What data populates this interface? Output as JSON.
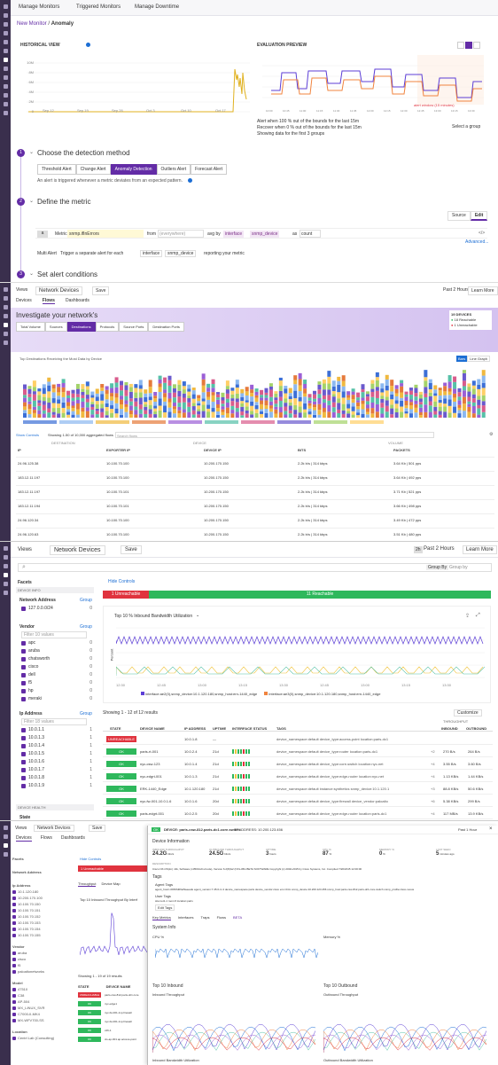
{
  "monitor": {
    "tabs": [
      "Manage Monitors",
      "Triggered Monitors",
      "Manage Downtime"
    ],
    "breadcrumb_root": "New Monitor",
    "breadcrumb_sep": "/",
    "breadcrumb_leaf": "Anomaly",
    "historical_view": "HISTORICAL VIEW",
    "evaluation_preview": "EVALUATION PREVIEW",
    "hist_y_ticks": [
      "10M",
      "8M",
      "6M",
      "4M",
      "2M",
      "0"
    ],
    "hist_x_ticks": [
      "Sep 12",
      "Sep 19",
      "Sep 26",
      "Oct 3",
      "Oct 10",
      "Oct 17"
    ],
    "eval_x_ticks": [
      "10:00",
      "10:45",
      "11:00",
      "11:15",
      "11:30",
      "11:45",
      "12:00",
      "12:15",
      "12:30",
      "12:45",
      "13:00",
      "13:15",
      "13:30"
    ],
    "eval_alert_window": "alert window (15 minutes)",
    "alert_line_1": "Alert when 100 % out of the bounds for the last 15m",
    "alert_line_2": "Recover when 0 % out of the bounds for the last 15m",
    "alert_line_3": "Showing data for the first 3 groups",
    "select_group": "Select a group",
    "step1_num": "1",
    "step1_title": "Choose the detection method",
    "methods": [
      "Threshold Alert",
      "Change Alert",
      "Anomaly Detection",
      "Outliers Alert",
      "Forecast Alert"
    ],
    "method_desc": "An alert is triggered whenever a metric deviates from an expected pattern.",
    "step2_num": "2",
    "step2_title": "Define the metric",
    "source_label": "Source",
    "edit_label": "Edit",
    "query_letter": "a",
    "metric_label": "Metric",
    "metric_value": "snmp.ifInErrors",
    "from_label": "from",
    "from_value": "(everywhere)",
    "avg_by": "avg by",
    "group_tags": [
      "interface",
      "snmp_device"
    ],
    "as_label": "as",
    "as_value": "count",
    "advanced": "Advanced...",
    "multi_alert": "Multi Alert",
    "trigger_text": "Trigger a separate alert for each",
    "trigger_tags": [
      "interface",
      "snmp_device"
    ],
    "reporting": "reporting your metric",
    "step3_num": "3",
    "step3_title": "Set alert conditions"
  },
  "flows": {
    "views": "Views",
    "title": "Network Devices",
    "save": "Save",
    "time": "Past 2 Hours",
    "learn_more": "Learn More",
    "tabs": [
      "Devices",
      "Flows",
      "Dashboards"
    ],
    "banner_title": "Investigate your network's",
    "subtabs": [
      "Total Volume",
      "Sources",
      "Destinations",
      "Protocols",
      "Source Ports",
      "Destination Ports"
    ],
    "legend_title": "19 DEVICES",
    "legend_ok": "18 Reachable",
    "legend_bad": "1 Unreachable",
    "chart_title": "Top Destinations Receiving the Most Data by Device",
    "bars_btn": "Bars",
    "line_btn": "Line Graph",
    "show_controls": "Show Controls",
    "showing": "Showing 1-50 of 10,000 aggregated flows",
    "search": "Search flows",
    "col_groups": [
      "DESTINATION",
      "DEVICE",
      "VOLUME"
    ],
    "cols": [
      "IP",
      "EXPORTER IP",
      "DEVICE IP",
      "BITS",
      "PACKETS"
    ],
    "rows": [
      [
        "24.96.125.38",
        "10.100.70.100",
        "10.200.170.150",
        "2.2k b/s | 314 kbps",
        "3.64 Kb | 501 pps"
      ],
      [
        "183.12.11.197",
        "10.100.70.100",
        "10.200.170.150",
        "2.2k b/s | 314 kbps",
        "3.64 Kb | 492 pps"
      ],
      [
        "183.12.11.197",
        "10.100.70.101",
        "10.200.170.150",
        "2.2k b/s | 314 kbps",
        "3.71 Kb | 521 pps"
      ],
      [
        "183.12.11.194",
        "10.100.70.101",
        "10.200.170.150",
        "2.2k b/s | 314 kbps",
        "3.66 Kb | 498 pps"
      ],
      [
        "24.96.120.34",
        "10.100.70.100",
        "10.200.170.150",
        "2.2k b/s | 314 kbps",
        "3.49 Kb | 472 pps"
      ],
      [
        "24.96.120.63",
        "10.100.70.100",
        "10.200.170.150",
        "2.2k b/s | 314 kbps",
        "3.51 Kb | 480 pps"
      ]
    ]
  },
  "devices": {
    "views": "Views",
    "title": "Network Devices",
    "save": "Save",
    "time_badge": "2h",
    "time": "Past 2 Hours",
    "learn_more": "Learn More",
    "group_by": "Group By",
    "group_by_placeholder": "Group by",
    "facets": "Facets",
    "hide_controls": "Hide Controls",
    "device_info": "DEVICE INFO",
    "network_address": "Network Address",
    "group": "Group",
    "network_items": [
      [
        "127.0.0.0/24",
        "0"
      ]
    ],
    "vendor": "Vendor",
    "vendor_filter": "Filter 10 values",
    "vendors": [
      [
        "apc",
        "0"
      ],
      [
        "aruba",
        "0"
      ],
      [
        "chatsworth",
        "0"
      ],
      [
        "cisco",
        "0"
      ],
      [
        "dell",
        "0"
      ],
      [
        "f5",
        "0"
      ],
      [
        "hp",
        "0"
      ],
      [
        "meraki",
        "0"
      ]
    ],
    "ip_address": "Ip Address",
    "ip_filter": "Filter 18 values",
    "ips": [
      [
        "10.0.1.1",
        "1"
      ],
      [
        "10.0.1.3",
        "1"
      ],
      [
        "10.0.1.4",
        "1"
      ],
      [
        "10.0.1.5",
        "1"
      ],
      [
        "10.0.1.6",
        "1"
      ],
      [
        "10.0.1.7",
        "1"
      ],
      [
        "10.0.1.8",
        "1"
      ],
      [
        "10.0.1.9",
        "1"
      ]
    ],
    "device_health": "DEVICE HEALTH",
    "state": "State",
    "unreachable_bar": "1 Unreachable",
    "reachable_bar": "11 Reachable",
    "chart_title": "Top 10 % Inbound Bandwidth Utilization",
    "chart_y_label": "Percent",
    "chart_x_ticks": [
      "12:30",
      "12:45",
      "13:00",
      "13:15",
      "13:30",
      "12:45",
      "13:00",
      "13:15",
      "13:30"
    ],
    "legend_1": "interface:ae2(0),snmp_device:10.1.120.180,snmp_host:ern-1440_edge",
    "legend_2": "interface:ae3(0),snmp_device:10.1.120.180,snmp_host:ern-1440_edge",
    "showing": "Showing 1 - 12 of 12 results",
    "customize": "Customize",
    "throughput": "THROUGHPUT",
    "cols": [
      "STATE",
      "DEVICE NAME",
      "IP ADDRESS",
      "UPTIME",
      "INTERFACE STATUS",
      "TAGS",
      "INBOUND",
      "OUTBOUND"
    ],
    "rows": [
      [
        "UNREACHABLE",
        "",
        "10.0.1.8",
        "—",
        "",
        "device_namespace:default  device_type:access-point  location:paris-dc1",
        "",
        "",
        ""
      ],
      [
        "OK",
        "paris-rt-001",
        "10.0.2.4",
        "21d",
        "",
        "device_namespace:default  device_type:router  location:paris-dc1",
        "+2",
        "270 B/s",
        "264 B/s"
      ],
      [
        "OK",
        "nyc-csw-123",
        "10.0.1.4",
        "21d",
        "",
        "device_namespace:default  device_type:core-switch  location:nyc-net",
        "+4",
        "3.55 B/s",
        "3.60 B/s"
      ],
      [
        "OK",
        "nyc-edgrt-001",
        "10.0.1.3",
        "21d",
        "",
        "device_namespace:default  device_type:edge-router  location:nyc-net",
        "+4",
        "1.13 KB/s",
        "1.44 KB/s"
      ],
      [
        "OK",
        "ERK-1440_Edge",
        "10.1.120.180",
        "21d",
        "",
        "device_namespace:default  instance:synthetics  snmp_device:10.1.120.1",
        "+3",
        "88.8 KB/s",
        "50.6 KB/s"
      ],
      [
        "OK",
        "nyc-fw-001-10.0.1.6",
        "10.0.1.6",
        "20d",
        "",
        "device_namespace:default  device_type:firewall  device_vendor:paloalto",
        "+6",
        "5.38 KB/s",
        "299 B/s"
      ],
      [
        "OK",
        "paris-edgrt-001",
        "10.0.2.5",
        "20d",
        "",
        "device_namespace:default  device_type:edge-router  location:paris-dc1",
        "+4",
        "117 MB/s",
        "13.9 KB/s"
      ]
    ]
  },
  "detail": {
    "views": "Views",
    "title": "Network Devices",
    "save": "Save",
    "tabs": [
      "Devices",
      "Flows",
      "Dashboards"
    ],
    "facets": "Facets",
    "hide_controls": "Hide Controls",
    "network_address": "Network Address",
    "ip_address": "Ip Address",
    "vendor": "Vendor",
    "model": "Model",
    "location": "Location",
    "group": "Group",
    "left_ips": [
      "10.1.120.180",
      "10.200.170.100",
      "10.100.70.150",
      "10.100.70.151",
      "10.100.70.152",
      "10.100.70.153",
      "10.100.70.154",
      "10.100.70.155"
    ],
    "left_vendors": [
      "aruba",
      "cisco",
      "f5",
      "paloaltonetworks"
    ],
    "left_models": [
      "47510",
      "C38",
      "AP-504",
      "MX_LINUX_SVR",
      "C7000-II-MK4",
      "MX-WFV700-SS"
    ],
    "left_locations": [
      "Centrl Lab (Consulting)"
    ],
    "unreachable": "1 Unreachable",
    "tp_tabs": [
      "Throughput",
      "Device Map"
    ],
    "tp_title": "Top 10 Inbound Throughput By Interf",
    "list_showing": "Showing 1 - 19 of 19 results",
    "list_cols": [
      "STATE",
      "DEVICE NAME"
    ],
    "list_rows": [
      [
        "UNREACHABLE",
        "paris-csw-812.paris-dc1.core"
      ],
      [
        "OK",
        "nyc-edge1"
      ],
      [
        "OK",
        "nyc-fw-001-1vp.firewall"
      ],
      [
        "OK",
        "nyc-fw-001-1vp.firewall"
      ],
      [
        "OK",
        "c26-1"
      ],
      [
        "OK",
        "cis-ap-001.ap.access-point"
      ]
    ],
    "panel_badge": "OK",
    "panel_title": "DEVICE: paris-csw-812.paris-dc1.core.switch",
    "panel_ip_label": "IP ADDRESS: 10.200.123.456",
    "panel_time": "Past 1 Hour",
    "device_info": "Device Information",
    "metrics": [
      [
        "INBOUND THROUGHPUT",
        "24.2G",
        "bits/s"
      ],
      [
        "OUTBOUND THROUGHPUT",
        "24.5G",
        "bits/s"
      ],
      [
        "UPTIME",
        "3",
        "hours"
      ],
      [
        "CPU %",
        "87",
        "%"
      ],
      [
        "MEMORY %",
        "0",
        "%"
      ],
      [
        "LAST SEEN",
        "5",
        "minutes ago"
      ]
    ],
    "description_label": "DESCRIPTION",
    "description": "Cisco NX-OS(tm) n3k, Software (n3500-k9 uCode), Version 6.2(8)G2 (NXL-IBG BETA SOFTWARE Copyright (c) 2002-2015 by Cisco Systems, Inc. Compiled 7/20/2015 12:00:00",
    "tags_label": "Tags",
    "agent_tags": "Agent Tags",
    "agent_tag_line": "agent_host:i-0b56fd06ef9aeeafe  agent_version:7.45.0-rc.4  device_namespace:paris  device_vendor:cisco  env:nhtm  snmp_device:10.200.123.456  snmp_host:paris-csw-812.paris-dc1.core.switch  snmp_profile:cisco-nexus",
    "user_tags": "User Tags",
    "user_tag_line": "site:net1-1  room:6  location:paris",
    "edit_tags": "Edit Tags",
    "panel_tabs": [
      "Key Metrics",
      "Interfaces",
      "Traps",
      "Flows"
    ],
    "panel_tab_beta": "BETA",
    "system_info": "System Info",
    "cpu_label": "CPU %",
    "mem_label": "Memory %",
    "top10_in": "Top 10 Inbound",
    "top10_out": "Top 10 Outbound",
    "in_tp": "Inbound Throughput",
    "out_tp": "Outbound Throughput",
    "in_bw": "Inbound Bandwidth Utilization",
    "out_bw": "Outbound Bandwidth Utilization"
  },
  "colors": {
    "brand": "#632ca6",
    "ok": "#2eb85c",
    "bad": "#e0333e",
    "alert": "#f0843f",
    "series_purple": "#5c3ed6"
  }
}
